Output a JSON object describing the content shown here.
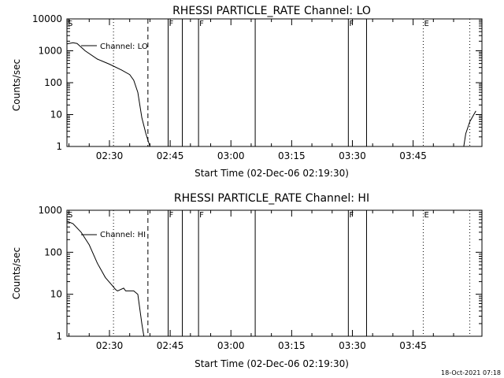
{
  "chart_data": [
    {
      "type": "line",
      "title": "RHESSI PARTICLE_RATE Channel: LO",
      "xlabel": "Start Time (02-Dec-06 02:19:30)",
      "ylabel": "Counts/sec",
      "x_ticks": [
        "02:30",
        "02:45",
        "03:00",
        "03:15",
        "03:30",
        "03:45"
      ],
      "y_ticks": [
        "1",
        "10",
        "100",
        "1000",
        "10000"
      ],
      "y_scale": "log",
      "ylim": [
        1,
        10000
      ],
      "xlim": [
        "02:19:30",
        "04:02:00"
      ],
      "grid": false,
      "legend": "Channel: LO",
      "series": [
        {
          "name": "Channel: LO",
          "segments": [
            [
              [
                "02:19:30",
                1650
              ],
              [
                "02:21:00",
                1800
              ],
              [
                "02:22:00",
                1700
              ],
              [
                "02:24:00",
                1000
              ],
              [
                "02:27:00",
                550
              ],
              [
                "02:30:00",
                380
              ],
              [
                "02:33:00",
                250
              ],
              [
                "02:35:00",
                180
              ],
              [
                "02:36:00",
                120
              ],
              [
                "02:37:00",
                50
              ],
              [
                "02:38:00",
                8
              ],
              [
                "02:39:00",
                2.5
              ],
              [
                "02:40:00",
                1
              ]
            ],
            [
              [
                "03:57:30",
                1
              ],
              [
                "03:58:00",
                2.5
              ],
              [
                "03:59:00",
                6
              ],
              [
                "04:00:30",
                13
              ]
            ]
          ]
        }
      ],
      "markers": [
        {
          "label": "S",
          "time": "02:19:30",
          "style": "dotted"
        },
        {
          "label": "",
          "time": "02:31:00",
          "style": "dotted"
        },
        {
          "label": "",
          "time": "02:39:30",
          "style": "dashed"
        },
        {
          "label": "F",
          "time": "02:44:30",
          "style": "solid"
        },
        {
          "label": "",
          "time": "02:48:00",
          "style": "solid"
        },
        {
          "label": "F",
          "time": "02:52:00",
          "style": "solid"
        },
        {
          "label": "",
          "time": "03:06:00",
          "style": "solid"
        },
        {
          "label": "F",
          "time": "03:29:00",
          "style": "solid"
        },
        {
          "label": "",
          "time": "03:33:30",
          "style": "solid"
        },
        {
          "label": "E",
          "time": "03:47:30",
          "style": "dotted"
        },
        {
          "label": "",
          "time": "03:59:00",
          "style": "dotted"
        }
      ]
    },
    {
      "type": "line",
      "title": "RHESSI PARTICLE_RATE Channel: HI",
      "xlabel": "Start Time (02-Dec-06 02:19:30)",
      "ylabel": "Counts/sec",
      "x_ticks": [
        "02:30",
        "02:45",
        "03:00",
        "03:15",
        "03:30",
        "03:45"
      ],
      "y_ticks": [
        "1",
        "10",
        "100",
        "1000"
      ],
      "y_scale": "log",
      "ylim": [
        1,
        1000
      ],
      "xlim": [
        "02:19:30",
        "04:02:00"
      ],
      "grid": false,
      "legend": "Channel: HI",
      "series": [
        {
          "name": "Channel: HI",
          "segments": [
            [
              [
                "02:19:30",
                550
              ],
              [
                "02:21:00",
                480
              ],
              [
                "02:23:00",
                300
              ],
              [
                "02:25:00",
                150
              ],
              [
                "02:27:00",
                55
              ],
              [
                "02:29:00",
                25
              ],
              [
                "02:30:30",
                17
              ],
              [
                "02:31:30",
                13
              ],
              [
                "02:32:00",
                12
              ],
              [
                "02:33:30",
                14
              ],
              [
                "02:34:00",
                12
              ],
              [
                "02:35:00",
                12
              ],
              [
                "02:36:00",
                12
              ],
              [
                "02:37:00",
                10
              ],
              [
                "02:38:00",
                2
              ],
              [
                "02:38:30",
                1
              ]
            ]
          ]
        }
      ],
      "markers": [
        {
          "label": "S",
          "time": "02:19:30",
          "style": "dotted"
        },
        {
          "label": "",
          "time": "02:31:00",
          "style": "dotted"
        },
        {
          "label": "",
          "time": "02:39:30",
          "style": "dashed"
        },
        {
          "label": "F",
          "time": "02:44:30",
          "style": "solid"
        },
        {
          "label": "",
          "time": "02:48:00",
          "style": "solid"
        },
        {
          "label": "F",
          "time": "02:52:00",
          "style": "solid"
        },
        {
          "label": "",
          "time": "03:06:00",
          "style": "solid"
        },
        {
          "label": "F",
          "time": "03:29:00",
          "style": "solid"
        },
        {
          "label": "",
          "time": "03:33:30",
          "style": "solid"
        },
        {
          "label": "E",
          "time": "03:47:30",
          "style": "dotted"
        },
        {
          "label": "",
          "time": "03:59:00",
          "style": "dotted"
        }
      ]
    }
  ],
  "footer": "18-Oct-2021 07:18",
  "colors": {
    "background": "#ffffff",
    "foreground": "#000000"
  }
}
